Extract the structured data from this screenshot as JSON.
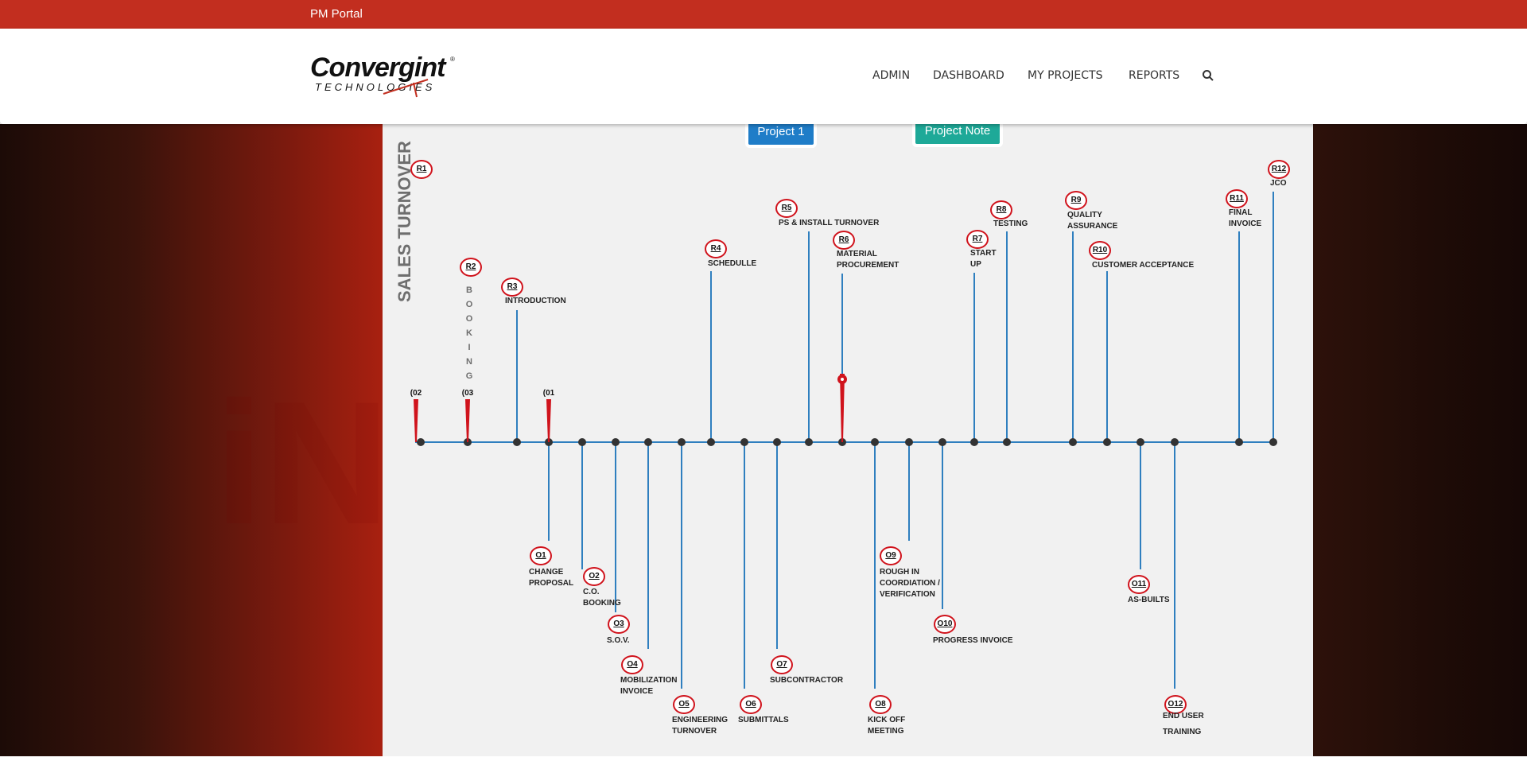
{
  "topbar": {
    "title": "PM Portal"
  },
  "header": {
    "logo": {
      "word": "Convergint",
      "sub": "TECHNOLOGIES",
      "reg": "®"
    },
    "nav": [
      {
        "label": "ADMIN"
      },
      {
        "label": "DASHBOARD"
      },
      {
        "label": "MY PROJECTS"
      },
      {
        "label": "REPORTS"
      }
    ],
    "search_icon": "search-icon"
  },
  "buttons": {
    "project": "Project 1",
    "note": "Project Note"
  },
  "timeline": {
    "vertical_title": "SALES TURNOVER",
    "booking_letters": "BOOKING",
    "markers": [
      "(02",
      "(03",
      "(01"
    ],
    "top": [
      {
        "code": "R1",
        "label": ""
      },
      {
        "code": "R2",
        "label": ""
      },
      {
        "code": "R3",
        "label": "INTRODUCTION"
      },
      {
        "code": "R4",
        "label": "SCHEDULLE"
      },
      {
        "code": "R5",
        "label": "PS & INSTALL TURNOVER"
      },
      {
        "code": "R6",
        "label": "MATERIAL PROCUREMENT"
      },
      {
        "code": "R7",
        "label": "START UP"
      },
      {
        "code": "R8",
        "label": "TESTING"
      },
      {
        "code": "R9",
        "label": "QUALITY ASSURANCE"
      },
      {
        "code": "R10",
        "label": "CUSTOMER ACCEPTANCE"
      },
      {
        "code": "R11",
        "label": "FINAL INVOICE"
      },
      {
        "code": "R12",
        "label": "JCO"
      }
    ],
    "bottom": [
      {
        "code": "O1",
        "label": "CHANGE PROPOSAL"
      },
      {
        "code": "O2",
        "label": "C.O. BOOKING"
      },
      {
        "code": "O3",
        "label": "S.O.V."
      },
      {
        "code": "O4",
        "label": "MOBILIZATION INVOICE"
      },
      {
        "code": "O5",
        "label": "ENGINEERING TURNOVER"
      },
      {
        "code": "O6",
        "label": "SUBMITTALS"
      },
      {
        "code": "O7",
        "label": "SUBCONTRACTOR"
      },
      {
        "code": "O8",
        "label": "KICK OFF MEETING"
      },
      {
        "code": "O9",
        "label": "ROUGH IN COORDIATION / VERIFICATION"
      },
      {
        "code": "O10",
        "label": "PROGRESS INVOICE"
      },
      {
        "code": "O11",
        "label": "AS-BUILTS"
      },
      {
        "code": "O12",
        "label": "END USER TRAINING"
      }
    ]
  }
}
